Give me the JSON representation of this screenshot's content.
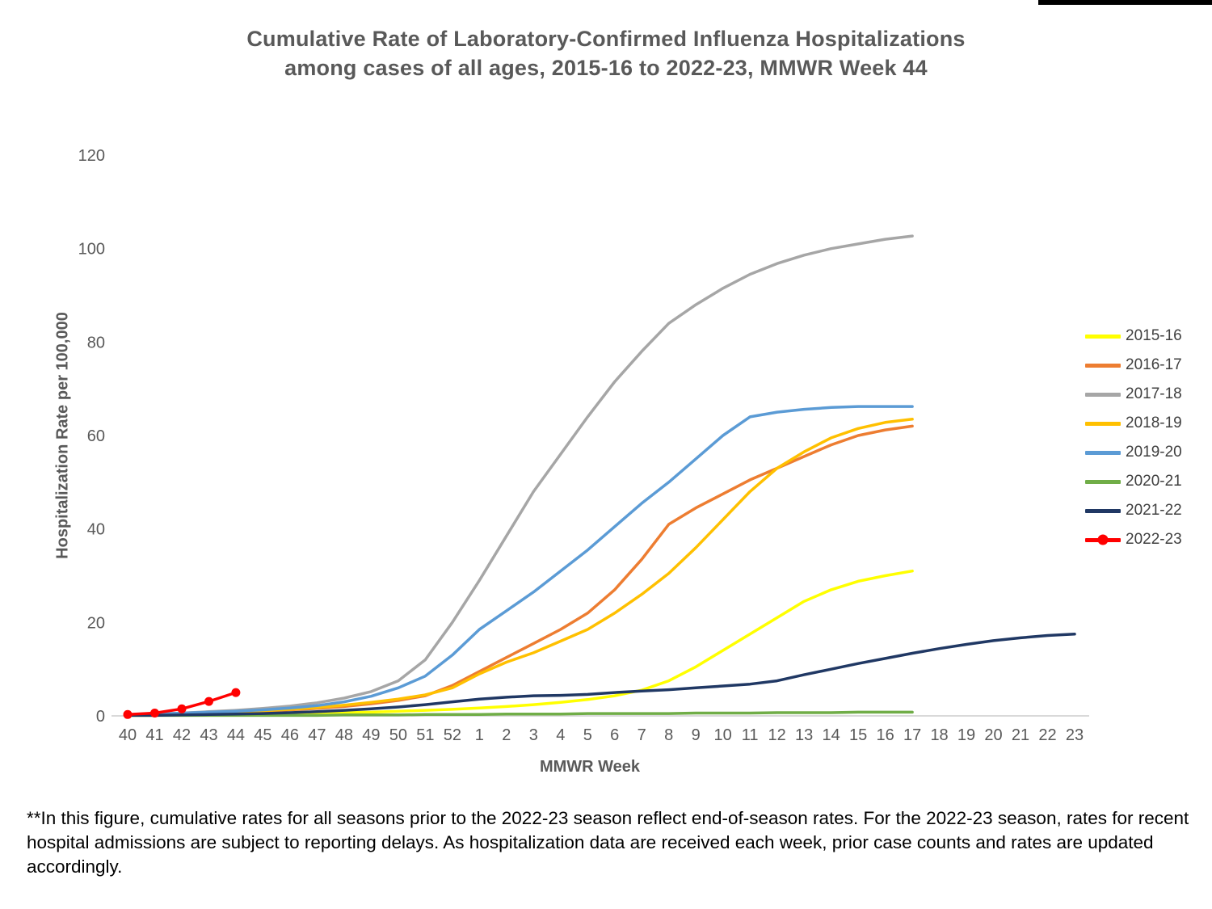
{
  "footnote": "**In this figure, cumulative rates for all seasons prior to the 2022-23 season reflect end-of-season rates. For the 2022-23 season, rates for recent hospital admissions are subject to reporting delays. As hospitalization data are received each week, prior case counts and rates are updated accordingly.",
  "chart_data": {
    "type": "line",
    "title": "Cumulative Rate of Laboratory-Confirmed Influenza Hospitalizations among cases of all ages, 2015-16 to 2022-23, MMWR Week 44",
    "title_lines": [
      "Cumulative Rate of Laboratory-Confirmed Influenza Hospitalizations",
      "among cases of all ages, 2015-16 to 2022-23, MMWR Week 44"
    ],
    "xlabel": "MMWR Week",
    "ylabel": "Hospitalization Rate per 100,000",
    "ylim": [
      0,
      120
    ],
    "yticks": [
      0,
      20,
      40,
      60,
      80,
      100,
      120
    ],
    "grid": false,
    "legend_position": "right",
    "categories": [
      "40",
      "41",
      "42",
      "43",
      "44",
      "45",
      "46",
      "47",
      "48",
      "49",
      "50",
      "51",
      "52",
      "1",
      "2",
      "3",
      "4",
      "5",
      "6",
      "7",
      "8",
      "9",
      "10",
      "11",
      "12",
      "13",
      "14",
      "15",
      "16",
      "17",
      "18",
      "19",
      "20",
      "21",
      "22",
      "23"
    ],
    "series": [
      {
        "name": "2015-16",
        "color": "#FFFF00",
        "values": [
          0.1,
          0.1,
          0.2,
          0.2,
          0.3,
          0.4,
          0.5,
          0.6,
          0.7,
          0.8,
          1.0,
          1.2,
          1.4,
          1.7,
          2.0,
          2.4,
          2.9,
          3.5,
          4.3,
          5.5,
          7.5,
          10.5,
          14,
          17.5,
          21,
          24.5,
          27,
          28.8,
          30,
          31,
          null,
          null,
          null,
          null,
          null,
          null
        ]
      },
      {
        "name": "2016-17",
        "color": "#ED7D31",
        "values": [
          0.2,
          0.3,
          0.4,
          0.6,
          0.8,
          1.0,
          1.3,
          1.6,
          2.0,
          2.6,
          3.3,
          4.3,
          6.5,
          9.5,
          12.5,
          15.5,
          18.5,
          22,
          27,
          33.5,
          41,
          44.5,
          47.5,
          50.5,
          53,
          55.5,
          58,
          60,
          61.2,
          62,
          null,
          null,
          null,
          null,
          null,
          null
        ]
      },
      {
        "name": "2017-18",
        "color": "#A6A6A6",
        "values": [
          0.2,
          0.4,
          0.6,
          0.9,
          1.2,
          1.6,
          2.1,
          2.8,
          3.8,
          5.2,
          7.5,
          12,
          20,
          29,
          38.5,
          48,
          56,
          64,
          71.5,
          78,
          84,
          88,
          91.5,
          94.5,
          96.8,
          98.6,
          100,
          101,
          102,
          102.7,
          null,
          null,
          null,
          null,
          null,
          null
        ]
      },
      {
        "name": "2018-19",
        "color": "#FFC000",
        "values": [
          0.2,
          0.3,
          0.5,
          0.7,
          0.9,
          1.1,
          1.4,
          1.8,
          2.3,
          2.9,
          3.6,
          4.5,
          6,
          9,
          11.5,
          13.5,
          16,
          18.5,
          22,
          26,
          30.5,
          36,
          42,
          48,
          53,
          56.5,
          59.5,
          61.5,
          62.8,
          63.5,
          null,
          null,
          null,
          null,
          null,
          null
        ]
      },
      {
        "name": "2019-20",
        "color": "#5B9BD5",
        "values": [
          0.3,
          0.4,
          0.6,
          0.8,
          1.0,
          1.3,
          1.7,
          2.2,
          3.0,
          4.2,
          6.0,
          8.5,
          13,
          18.5,
          22.5,
          26.5,
          31,
          35.5,
          40.5,
          45.5,
          50,
          55,
          60,
          64,
          65,
          65.6,
          66,
          66.2,
          66.2,
          66.2,
          null,
          null,
          null,
          null,
          null,
          null
        ]
      },
      {
        "name": "2020-21",
        "color": "#70AD47",
        "values": [
          0.1,
          0.1,
          0.1,
          0.1,
          0.1,
          0.1,
          0.1,
          0.1,
          0.2,
          0.2,
          0.2,
          0.3,
          0.3,
          0.3,
          0.4,
          0.4,
          0.4,
          0.5,
          0.5,
          0.5,
          0.5,
          0.6,
          0.6,
          0.6,
          0.7,
          0.7,
          0.7,
          0.8,
          0.8,
          0.8,
          null,
          null,
          null,
          null,
          null,
          null
        ]
      },
      {
        "name": "2021-22",
        "color": "#203864",
        "values": [
          0.1,
          0.1,
          0.2,
          0.3,
          0.4,
          0.5,
          0.7,
          0.9,
          1.2,
          1.5,
          1.9,
          2.4,
          3.0,
          3.6,
          4.0,
          4.3,
          4.4,
          4.6,
          5.0,
          5.3,
          5.6,
          6.0,
          6.4,
          6.8,
          7.5,
          8.8,
          10,
          11.2,
          12.3,
          13.4,
          14.4,
          15.3,
          16.1,
          16.7,
          17.2,
          17.5
        ]
      },
      {
        "name": "2022-23",
        "color": "#FF0000",
        "marker": "circle",
        "values": [
          0.3,
          0.6,
          1.5,
          3.1,
          5.0,
          null,
          null,
          null,
          null,
          null,
          null,
          null,
          null,
          null,
          null,
          null,
          null,
          null,
          null,
          null,
          null,
          null,
          null,
          null,
          null,
          null,
          null,
          null,
          null,
          null,
          null,
          null,
          null,
          null,
          null,
          null
        ]
      }
    ]
  }
}
